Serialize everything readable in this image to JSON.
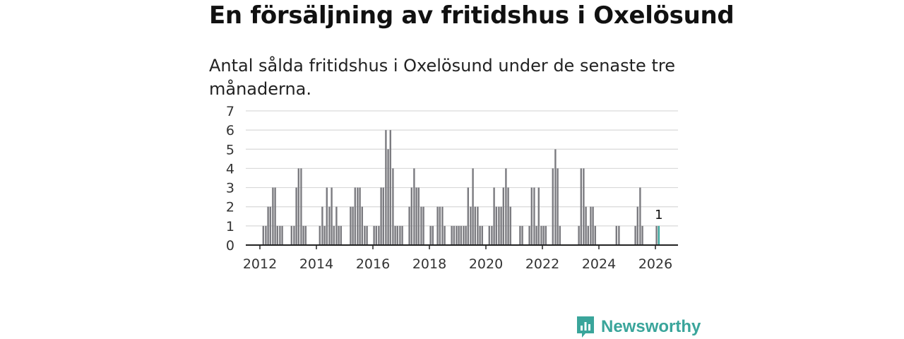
{
  "title": "En försäljning av fritidshus i Oxelösund",
  "subtitle": "Antal sålda fritidshus i Oxelösund under de senaste tre månaderna.",
  "brand": {
    "name": "Newsworthy",
    "color": "#3aa59b",
    "icon": "newsworthy-logo-icon"
  },
  "colors": {
    "bar": "#7b7b80",
    "highlight": "#3aa59b",
    "grid": "#d9d9d9",
    "axis": "#222222"
  },
  "chart_data": {
    "type": "bar",
    "title": "En försäljning av fritidshus i Oxelösund",
    "subtitle": "Antal sålda fritidshus i Oxelösund under de senaste tre månaderna.",
    "xlabel": "",
    "ylabel": "",
    "ylim": [
      0,
      7
    ],
    "yticks": [
      "0",
      "1",
      "2",
      "3",
      "4",
      "5",
      "6",
      "7"
    ],
    "xlim": [
      2011.5,
      2026.8
    ],
    "xticks": [
      "2012",
      "2014",
      "2016",
      "2018",
      "2020",
      "2022",
      "2024",
      "2026"
    ],
    "grid": true,
    "bar_width_years": 0.06,
    "series": [
      {
        "name": "Antal sålda fritidshus",
        "x": [
          2012.12,
          2012.21,
          2012.29,
          2012.37,
          2012.46,
          2012.54,
          2012.62,
          2012.71,
          2012.79,
          2013.12,
          2013.21,
          2013.29,
          2013.37,
          2013.46,
          2013.54,
          2013.62,
          2014.12,
          2014.21,
          2014.29,
          2014.37,
          2014.46,
          2014.54,
          2014.62,
          2014.71,
          2014.79,
          2014.87,
          2015.21,
          2015.29,
          2015.37,
          2015.46,
          2015.54,
          2015.62,
          2015.71,
          2015.79,
          2016.04,
          2016.12,
          2016.21,
          2016.29,
          2016.37,
          2016.46,
          2016.54,
          2016.62,
          2016.71,
          2016.79,
          2016.87,
          2016.96,
          2017.04,
          2017.29,
          2017.37,
          2017.46,
          2017.54,
          2017.62,
          2017.71,
          2017.79,
          2018.04,
          2018.12,
          2018.29,
          2018.37,
          2018.46,
          2018.54,
          2018.79,
          2018.87,
          2018.96,
          2019.04,
          2019.12,
          2019.21,
          2019.29,
          2019.37,
          2019.46,
          2019.54,
          2019.62,
          2019.71,
          2019.79,
          2019.87,
          2020.12,
          2020.21,
          2020.29,
          2020.37,
          2020.46,
          2020.54,
          2020.62,
          2020.71,
          2020.79,
          2020.87,
          2021.21,
          2021.29,
          2021.54,
          2021.62,
          2021.71,
          2021.79,
          2021.87,
          2021.96,
          2022.04,
          2022.12,
          2022.37,
          2022.46,
          2022.54,
          2022.62,
          2023.29,
          2023.37,
          2023.46,
          2023.54,
          2023.62,
          2023.71,
          2023.79,
          2023.87,
          2024.62,
          2024.71,
          2025.29,
          2025.37,
          2025.46,
          2025.54,
          2026.04,
          2026.12
        ],
        "values": [
          1,
          1,
          2,
          2,
          3,
          3,
          1,
          1,
          1,
          1,
          1,
          3,
          4,
          4,
          1,
          1,
          1,
          2,
          1,
          3,
          2,
          3,
          1,
          2,
          1,
          1,
          2,
          2,
          3,
          3,
          3,
          2,
          1,
          1,
          1,
          1,
          1,
          3,
          3,
          6,
          5,
          6,
          4,
          1,
          1,
          1,
          1,
          2,
          3,
          4,
          3,
          3,
          2,
          2,
          1,
          1,
          2,
          2,
          2,
          1,
          1,
          1,
          1,
          1,
          1,
          1,
          1,
          3,
          2,
          4,
          2,
          2,
          1,
          1,
          1,
          1,
          3,
          2,
          2,
          2,
          3,
          4,
          3,
          2,
          1,
          1,
          1,
          3,
          3,
          1,
          3,
          1,
          1,
          1,
          4,
          5,
          4,
          1,
          1,
          4,
          4,
          2,
          1,
          2,
          2,
          1,
          1,
          1,
          1,
          2,
          3,
          1,
          1,
          1
        ]
      }
    ],
    "highlight_x": 2026.12,
    "annotations": [
      {
        "x": 2026.12,
        "value": 1,
        "text": "1"
      }
    ]
  }
}
